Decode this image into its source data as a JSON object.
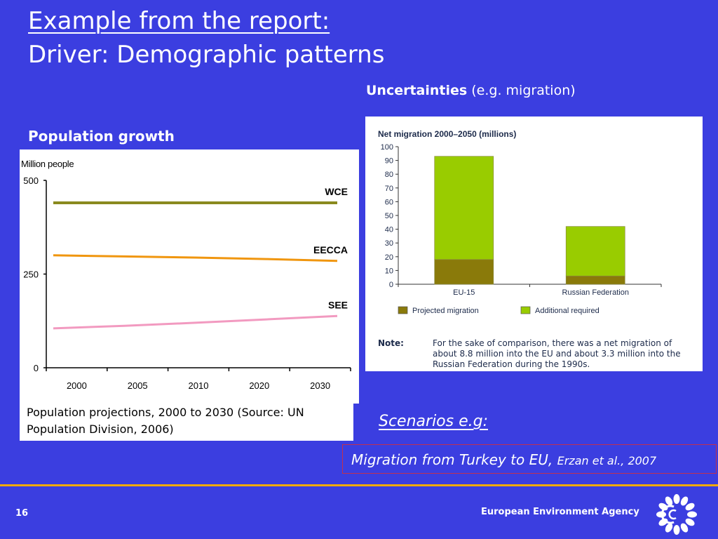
{
  "slide": {
    "title_line1": "Example from the report:",
    "title_line2": "Driver: Demographic patterns",
    "uncertainties_bold": "Uncertainties",
    "uncertainties_rest": " (e.g. migration)",
    "population_growth": "Population growth",
    "caption_left": "Population projections, 2000 to 2030 (Source: UN Population Division, 2006)",
    "scenarios": "Scenarios e.g:",
    "migration_main": "Migration from Turkey to EU, ",
    "migration_ref": "Erzan et al., 2007",
    "page_number": "16",
    "agency": "European Environment Agency",
    "logo_icon": "eea-sun-logo-icon"
  },
  "chart_data": [
    {
      "type": "line",
      "title": "",
      "ylabel": "Million people",
      "xlabel": "",
      "categories": [
        "2000",
        "2005",
        "2010",
        "2020",
        "2030"
      ],
      "ylim": [
        0,
        500
      ],
      "yticks": [
        0,
        250,
        500
      ],
      "grid": false,
      "series": [
        {
          "name": "WCE",
          "values": [
            440,
            440,
            440,
            440,
            440
          ],
          "color": "#8a8a1e"
        },
        {
          "name": "EECCA",
          "values": [
            300,
            297,
            294,
            290,
            285
          ],
          "color": "#f0960f"
        },
        {
          "name": "SEE",
          "values": [
            105,
            112,
            120,
            129,
            138
          ],
          "color": "#f29ac0"
        }
      ]
    },
    {
      "type": "bar",
      "stacked": true,
      "title": "Net migration 2000–2050 (millions)",
      "categories": [
        "EU-15",
        "Russian Federation"
      ],
      "ylim": [
        0,
        100
      ],
      "yticks": [
        0,
        10,
        20,
        30,
        40,
        50,
        60,
        70,
        80,
        90,
        100
      ],
      "legend": "bottom",
      "series": [
        {
          "name": "Projected migration",
          "values": [
            18,
            6
          ],
          "color": "#8a7a0a"
        },
        {
          "name": "Additional required",
          "values": [
            75,
            36
          ],
          "color": "#99cc00"
        }
      ],
      "note_label": "Note:",
      "note": "For the sake of comparison, there was a net migration of about 8.8 million into the EU and about 3.3 million into the Russian Federation during the 1990s."
    }
  ]
}
